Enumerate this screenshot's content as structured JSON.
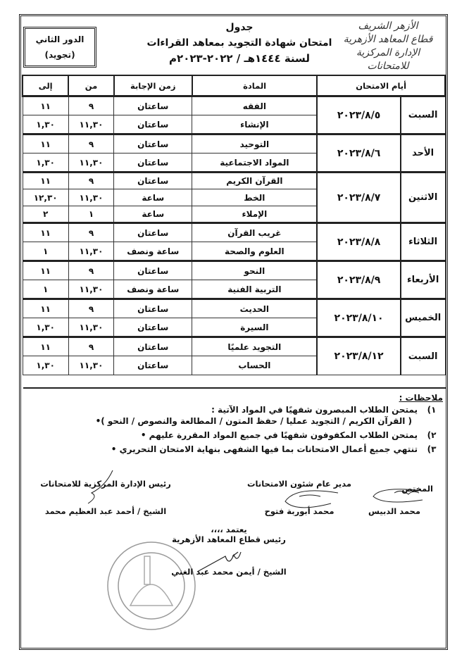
{
  "logo": {
    "lines": [
      "الأزهر الشريف",
      "قطاع المعاهد الأزهرية",
      "الإدارة المركزية للامتحانات"
    ]
  },
  "title": {
    "line1": "جدول",
    "line2": "امتحان شهادة التجويد بمعاهد القراءات",
    "line3": "لسنة ١٤٤٤هـ / ٢٠٢٢-٢٠٢٣م"
  },
  "round_box": {
    "line1": "الدور الثاني",
    "line2": "(تجويد)"
  },
  "table": {
    "headers": {
      "days": "أيام الامتحان",
      "subject": "المادة",
      "duration": "زمن الإجابة",
      "from": "من",
      "to": "إلى"
    },
    "groups": [
      {
        "day": "السبت",
        "date": "٢٠٢٣/٨/٥",
        "rows": [
          {
            "subject": "الفقه",
            "duration": "ساعتان",
            "from": "٩",
            "to": "١١"
          },
          {
            "subject": "الإنشاء",
            "duration": "ساعتان",
            "from": "١١,٣٠",
            "to": "١,٣٠"
          }
        ]
      },
      {
        "day": "الأحد",
        "date": "٢٠٢٣/٨/٦",
        "rows": [
          {
            "subject": "التوحيد",
            "duration": "ساعتان",
            "from": "٩",
            "to": "١١"
          },
          {
            "subject": "المواد الاجتماعية",
            "duration": "ساعتان",
            "from": "١١,٣٠",
            "to": "١,٣٠"
          }
        ]
      },
      {
        "day": "الاثنين",
        "date": "٢٠٢٣/٨/٧",
        "rows": [
          {
            "subject": "القرآن الكريم",
            "duration": "ساعتان",
            "from": "٩",
            "to": "١١"
          },
          {
            "subject": "الخط",
            "duration": "ساعة",
            "from": "١١,٣٠",
            "to": "١٢,٣٠"
          },
          {
            "subject": "الإملاء",
            "duration": "ساعة",
            "from": "١",
            "to": "٢"
          }
        ]
      },
      {
        "day": "الثلاثاء",
        "date": "٢٠٢٣/٨/٨",
        "rows": [
          {
            "subject": "غريب القرآن",
            "duration": "ساعتان",
            "from": "٩",
            "to": "١١"
          },
          {
            "subject": "العلوم والصحة",
            "duration": "ساعة ونصف",
            "from": "١١,٣٠",
            "to": "١"
          }
        ]
      },
      {
        "day": "الأربعاء",
        "date": "٢٠٢٣/٨/٩",
        "rows": [
          {
            "subject": "النحو",
            "duration": "ساعتان",
            "from": "٩",
            "to": "١١"
          },
          {
            "subject": "التربية الفنية",
            "duration": "ساعة ونصف",
            "from": "١١,٣٠",
            "to": "١"
          }
        ]
      },
      {
        "day": "الخميس",
        "date": "٢٠٢٣/٨/١٠",
        "rows": [
          {
            "subject": "الحديث",
            "duration": "ساعتان",
            "from": "٩",
            "to": "١١"
          },
          {
            "subject": "السيرة",
            "duration": "ساعتان",
            "from": "١١,٣٠",
            "to": "١,٣٠"
          }
        ]
      },
      {
        "day": "السبت",
        "date": "٢٠٢٣/٨/١٢",
        "rows": [
          {
            "subject": "التجويد علميًا",
            "duration": "ساعتان",
            "from": "٩",
            "to": "١١"
          },
          {
            "subject": "الحساب",
            "duration": "ساعتان",
            "from": "١١,٣٠",
            "to": "١,٣٠"
          }
        ]
      }
    ]
  },
  "notes": {
    "heading": "ملاحظات :",
    "items": [
      {
        "num": "١)",
        "text": "يمتحن الطلاب المبصرون شفهيًا في المواد الآتية :",
        "sub": "( القرآن الكريم / التجويد عمليا / حفظ المتون / المطالعة والنصوص / النحو )•"
      },
      {
        "num": "٢)",
        "text": "يمتحن الطلاب المكفوفون شفهيًا في جميع المواد المقررة عليهم •"
      },
      {
        "num": "٣)",
        "text": "تنتهي جميع أعمال الامتحانات بما فيها الشفهى بنهاية الامتحان التحريري •"
      }
    ]
  },
  "signatures": {
    "specialist": {
      "title": "المختص",
      "name": "محمد الدبيس"
    },
    "director": {
      "title": "مدير عام شئون الامتحانات",
      "name": "محمد أبوربة فتوح"
    },
    "head_admin": {
      "title": "رئيس الإدارة المركزية للامتحانات",
      "name": "الشيخ / أحمد عبد العظيم محمد"
    },
    "approval": {
      "label": "يعتمد ،،،،",
      "title": "رئيس قطاع المعاهد الأزهرية",
      "name": "الشيخ / أيمن محمد عبد الغني"
    }
  }
}
